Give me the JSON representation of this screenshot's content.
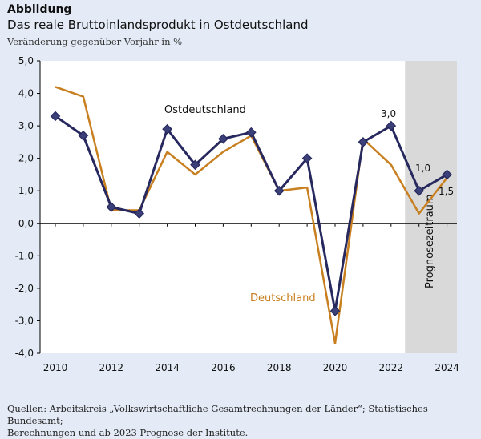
{
  "header": {
    "kicker": "Abbildung",
    "title": "Das reale Bruttoinlandsprodukt in Ostdeutschland",
    "subtitle": "Veränderung gegenüber Vorjahr in %"
  },
  "footer": {
    "source_line1": "Quellen: Arbeitskreis „Volkswirtschaftliche Gesamtrechnungen der Länder“; Statistisches Bundesamt;",
    "source_line2": "Berechnungen und ab 2023 Prognose der Institute."
  },
  "colors": {
    "ostdeutschland": "#26285e",
    "deutschland": "#c87f1f",
    "forecast_band": "#d9d9d9",
    "plot_background": "#ffffff"
  },
  "chart_data": {
    "type": "line",
    "x": [
      2010,
      2011,
      2012,
      2013,
      2014,
      2015,
      2016,
      2017,
      2018,
      2019,
      2020,
      2021,
      2022,
      2023,
      2024
    ],
    "xticks": [
      "2010",
      "2012",
      "2014",
      "2016",
      "2018",
      "2020",
      "2022",
      "2024"
    ],
    "xlim": [
      2010,
      2024
    ],
    "ylim": [
      -4,
      5
    ],
    "yticks": [
      "5,0",
      "4,0",
      "3,0",
      "2,0",
      "1,0",
      "0,0",
      "-1,0",
      "-2,0",
      "-3,0",
      "-4,0"
    ],
    "grid": false,
    "series": [
      {
        "name": "Ostdeutschland",
        "color": "#26285e",
        "marker": "diamond",
        "values": [
          3.3,
          2.7,
          0.5,
          0.3,
          2.9,
          1.8,
          2.6,
          2.8,
          1.0,
          2.0,
          -2.7,
          2.5,
          3.0,
          1.0,
          1.5
        ]
      },
      {
        "name": "Deutschland",
        "color": "#c87f1f",
        "marker": "none",
        "values": [
          4.2,
          3.9,
          0.4,
          0.4,
          2.2,
          1.5,
          2.2,
          2.7,
          1.0,
          1.1,
          -3.7,
          2.6,
          1.8,
          0.3,
          1.4
        ]
      }
    ],
    "forecast_region": {
      "from": 2022.5,
      "to": 2024.5,
      "label": "Prognosezeitraum"
    },
    "annotations": [
      "3,0",
      "1,0",
      "1,5"
    ]
  }
}
